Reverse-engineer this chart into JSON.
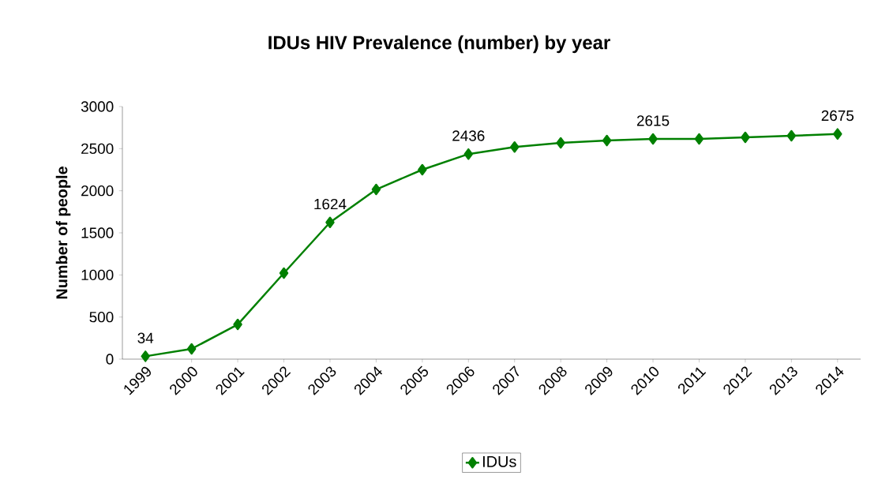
{
  "chart_data": {
    "type": "line",
    "title": "IDUs HIV Prevalence (number) by year",
    "ylabel": "Number of people",
    "categories": [
      "1999",
      "2000",
      "2001",
      "2002",
      "2003",
      "2004",
      "2005",
      "2006",
      "2007",
      "2008",
      "2009",
      "2010",
      "2011",
      "2012",
      "2013",
      "2014"
    ],
    "series": [
      {
        "name": "IDUs",
        "color": "#008000",
        "values": [
          34,
          122,
          412,
          1022,
          1624,
          2015,
          2250,
          2436,
          2520,
          2568,
          2596,
          2615,
          2615,
          2634,
          2653,
          2675
        ],
        "value_labels": [
          "34",
          null,
          null,
          null,
          "1624",
          null,
          null,
          "2436",
          null,
          null,
          null,
          "2615",
          null,
          null,
          null,
          "2675"
        ]
      }
    ],
    "ylim": [
      0,
      3000
    ],
    "yticks": [
      0,
      500,
      1000,
      1500,
      2000,
      2500,
      3000
    ],
    "grid": false,
    "legend": "bottom",
    "marker": "diamond",
    "line_style": "solid"
  }
}
